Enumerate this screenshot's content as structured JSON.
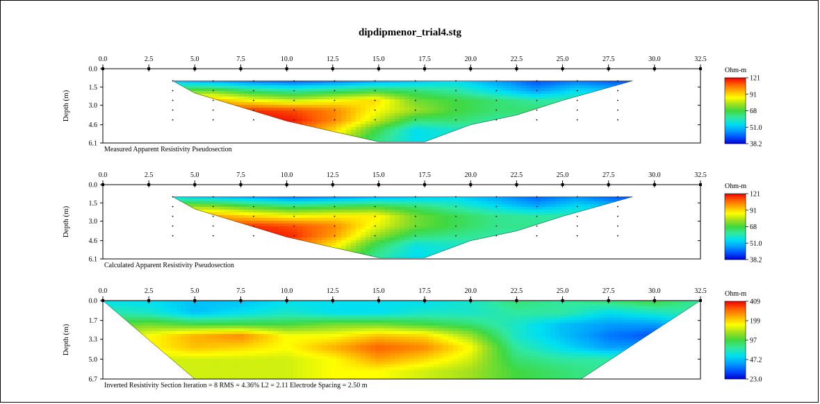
{
  "title": "dipdipmenor_trial4.stg",
  "colors": {
    "scale": [
      "#0000d0",
      "#0050ff",
      "#00a0ff",
      "#00e0f0",
      "#30e8a0",
      "#40d840",
      "#a0e020",
      "#ffff00",
      "#ffb000",
      "#ff6000",
      "#f00000"
    ]
  },
  "chart_data": [
    {
      "type": "heatmap",
      "title": "Measured Apparent Resistivity Pseudosection",
      "ylabel": "Depth (m)",
      "x_ticks": [
        "0.0",
        "2.5",
        "5.0",
        "7.5",
        "10.0",
        "12.5",
        "15.0",
        "17.5",
        "20.0",
        "22.5",
        "25.0",
        "27.5",
        "30.0",
        "32.5"
      ],
      "xlim": [
        0,
        32.5
      ],
      "y_ticks": [
        "0.0",
        "1.5",
        "3.0",
        "4.6",
        "6.1"
      ],
      "ylim": [
        0,
        6.1
      ],
      "legend_unit": "Ohm-m",
      "legend_labels": [
        "121",
        "91",
        "68",
        "51.0",
        "38.2"
      ],
      "outline": [
        [
          3.8,
          1.0
        ],
        [
          28.8,
          1.0
        ],
        [
          25.0,
          2.6
        ],
        [
          22.5,
          3.8
        ],
        [
          20.0,
          4.6
        ],
        [
          17.5,
          6.0
        ],
        [
          15.0,
          6.0
        ],
        [
          10.0,
          4.3
        ],
        [
          5.0,
          2.0
        ]
      ],
      "grid_x": [
        3.8,
        6.0,
        8.2,
        10.4,
        12.6,
        14.8,
        17.0,
        19.2,
        21.4,
        23.6,
        25.8,
        28.0
      ],
      "grid_y": [
        1.0,
        1.8,
        2.6,
        3.4,
        4.2,
        5.0,
        5.8
      ],
      "values": [
        [
          0.25,
          0.2,
          0.15,
          0.12,
          0.15,
          0.2,
          0.25,
          0.3,
          0.2,
          0.1,
          0.15,
          0.1
        ],
        [
          0.55,
          0.55,
          0.45,
          0.4,
          0.45,
          0.5,
          0.45,
          0.4,
          0.3,
          0.2,
          0.3,
          0.25
        ],
        [
          0.75,
          0.8,
          0.7,
          0.65,
          0.7,
          0.75,
          0.55,
          0.5,
          0.45,
          0.4,
          0.4,
          0.35
        ],
        [
          0.85,
          0.9,
          0.95,
          0.92,
          0.85,
          0.7,
          0.6,
          0.5,
          0.45,
          0.45,
          0.4,
          0.35
        ],
        [
          0.9,
          0.95,
          1.0,
          0.97,
          0.85,
          0.65,
          0.45,
          0.45,
          0.4,
          0.4,
          0.35,
          0.3
        ],
        [
          0.85,
          0.9,
          0.95,
          0.9,
          0.75,
          0.5,
          0.3,
          0.35,
          0.4,
          0.4,
          0.35,
          0.3
        ],
        [
          0.8,
          0.85,
          0.9,
          0.8,
          0.65,
          0.45,
          0.3,
          0.35,
          0.4,
          0.4,
          0.35,
          0.3
        ]
      ]
    },
    {
      "type": "heatmap",
      "title": "Calculated Apparent Resistivity Pseudosection",
      "ylabel": "Depth (m)",
      "x_ticks": [
        "0.0",
        "2.5",
        "5.0",
        "7.5",
        "10.0",
        "12.5",
        "15.0",
        "17.5",
        "20.0",
        "22.5",
        "25.0",
        "27.5",
        "30.0",
        "32.5"
      ],
      "xlim": [
        0,
        32.5
      ],
      "y_ticks": [
        "0.0",
        "1.5",
        "3.0",
        "4.6",
        "6.1"
      ],
      "ylim": [
        0,
        6.1
      ],
      "legend_unit": "Ohm-m",
      "legend_labels": [
        "121",
        "91",
        "68",
        "51.0",
        "38.2"
      ],
      "outline": [
        [
          3.8,
          1.0
        ],
        [
          28.8,
          1.0
        ],
        [
          25.0,
          2.6
        ],
        [
          22.5,
          3.8
        ],
        [
          20.0,
          4.6
        ],
        [
          17.5,
          6.0
        ],
        [
          15.0,
          6.0
        ],
        [
          10.0,
          4.3
        ],
        [
          5.0,
          2.0
        ]
      ],
      "grid_x": [
        3.8,
        6.0,
        8.2,
        10.4,
        12.6,
        14.8,
        17.0,
        19.2,
        21.4,
        23.6,
        25.8,
        28.0
      ],
      "grid_y": [
        1.0,
        1.8,
        2.6,
        3.4,
        4.2,
        5.0,
        5.8
      ],
      "values": [
        [
          0.3,
          0.25,
          0.2,
          0.15,
          0.18,
          0.22,
          0.25,
          0.28,
          0.2,
          0.12,
          0.18,
          0.1
        ],
        [
          0.6,
          0.58,
          0.5,
          0.45,
          0.48,
          0.5,
          0.45,
          0.38,
          0.3,
          0.22,
          0.3,
          0.25
        ],
        [
          0.78,
          0.82,
          0.75,
          0.7,
          0.72,
          0.72,
          0.55,
          0.48,
          0.42,
          0.4,
          0.38,
          0.35
        ],
        [
          0.88,
          0.92,
          0.95,
          0.92,
          0.85,
          0.68,
          0.55,
          0.48,
          0.42,
          0.42,
          0.38,
          0.35
        ],
        [
          0.92,
          0.97,
          1.0,
          0.95,
          0.82,
          0.6,
          0.45,
          0.42,
          0.4,
          0.38,
          0.35,
          0.3
        ],
        [
          0.88,
          0.92,
          0.95,
          0.88,
          0.72,
          0.48,
          0.32,
          0.35,
          0.38,
          0.38,
          0.35,
          0.3
        ],
        [
          0.82,
          0.86,
          0.9,
          0.8,
          0.62,
          0.42,
          0.3,
          0.35,
          0.38,
          0.38,
          0.35,
          0.3
        ]
      ]
    },
    {
      "type": "heatmap",
      "title": "Inverted Resistivity Section",
      "annotation": "Inverted Resistivity Section     Iteration = 8    RMS = 4.36%    L2 = 2.11     Electrode Spacing = 2.50 m",
      "ylabel": "Depth (m)",
      "x_ticks": [
        "0.0",
        "2.5",
        "5.0",
        "7.5",
        "10.0",
        "12.5",
        "15.0",
        "17.5",
        "20.0",
        "22.5",
        "25.0",
        "27.5",
        "30.0",
        "32.5"
      ],
      "xlim": [
        0,
        32.5
      ],
      "y_ticks": [
        "0.0",
        "1.7",
        "3.3",
        "5.0",
        "6.7"
      ],
      "ylim": [
        0,
        6.7
      ],
      "legend_unit": "Ohm-m",
      "legend_labels": [
        "409",
        "199",
        "97",
        "47.2",
        "23.0"
      ],
      "outline": [
        [
          0.0,
          0.0
        ],
        [
          32.5,
          0.0
        ],
        [
          26.0,
          6.7
        ],
        [
          5.0,
          6.7
        ]
      ],
      "grid_x": [
        0.0,
        2.5,
        5.0,
        7.5,
        10.0,
        12.5,
        15.0,
        17.5,
        20.0,
        22.5,
        25.0,
        27.5,
        30.0,
        32.5
      ],
      "grid_y": [
        0.0,
        1.0,
        2.0,
        3.0,
        4.0,
        5.0,
        6.0,
        6.7
      ],
      "values": [
        [
          0.3,
          0.3,
          0.25,
          0.25,
          0.3,
          0.3,
          0.3,
          0.3,
          0.35,
          0.45,
          0.4,
          0.45,
          0.5,
          0.4
        ],
        [
          0.4,
          0.35,
          0.25,
          0.3,
          0.35,
          0.3,
          0.3,
          0.35,
          0.35,
          0.4,
          0.4,
          0.3,
          0.35,
          0.4
        ],
        [
          0.5,
          0.55,
          0.5,
          0.5,
          0.5,
          0.55,
          0.55,
          0.5,
          0.45,
          0.35,
          0.25,
          0.2,
          0.2,
          0.3
        ],
        [
          0.6,
          0.7,
          0.8,
          0.85,
          0.7,
          0.7,
          0.78,
          0.75,
          0.6,
          0.35,
          0.25,
          0.15,
          0.1,
          0.25
        ],
        [
          0.6,
          0.7,
          0.78,
          0.75,
          0.7,
          0.8,
          0.9,
          0.85,
          0.7,
          0.4,
          0.3,
          0.2,
          0.2,
          0.3
        ],
        [
          0.6,
          0.65,
          0.65,
          0.65,
          0.65,
          0.7,
          0.82,
          0.75,
          0.65,
          0.45,
          0.4,
          0.4,
          0.4,
          0.4
        ],
        [
          0.6,
          0.65,
          0.65,
          0.65,
          0.65,
          0.7,
          0.7,
          0.65,
          0.6,
          0.5,
          0.45,
          0.4,
          0.4,
          0.4
        ],
        [
          0.6,
          0.65,
          0.65,
          0.65,
          0.65,
          0.7,
          0.7,
          0.65,
          0.6,
          0.5,
          0.45,
          0.4,
          0.4,
          0.4
        ]
      ]
    }
  ]
}
